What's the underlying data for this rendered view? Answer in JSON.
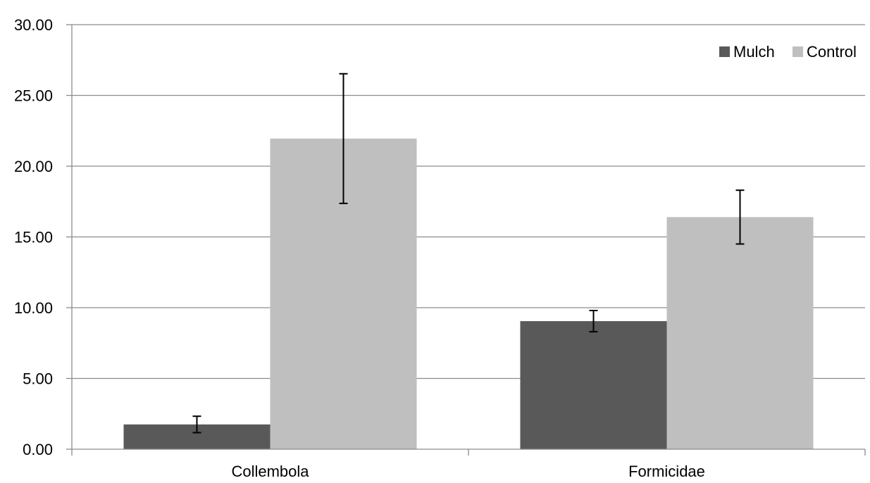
{
  "chart_data": {
    "type": "bar",
    "title": "",
    "xlabel": "",
    "ylabel": "",
    "categories": [
      "Collembola",
      "Formicidae"
    ],
    "series": [
      {
        "name": "Mulch",
        "color": "#595959",
        "values": [
          1.75,
          9.05
        ],
        "errors": [
          0.58,
          0.75
        ]
      },
      {
        "name": "Control",
        "color": "#bfbfbf",
        "values": [
          21.95,
          16.4
        ],
        "errors": [
          4.58,
          1.9
        ]
      }
    ],
    "ylim": [
      0,
      30
    ],
    "yticks": [
      "0.00",
      "5.00",
      "10.00",
      "15.00",
      "20.00",
      "25.00",
      "30.00"
    ],
    "grid": true,
    "legend_position": "top-right"
  }
}
